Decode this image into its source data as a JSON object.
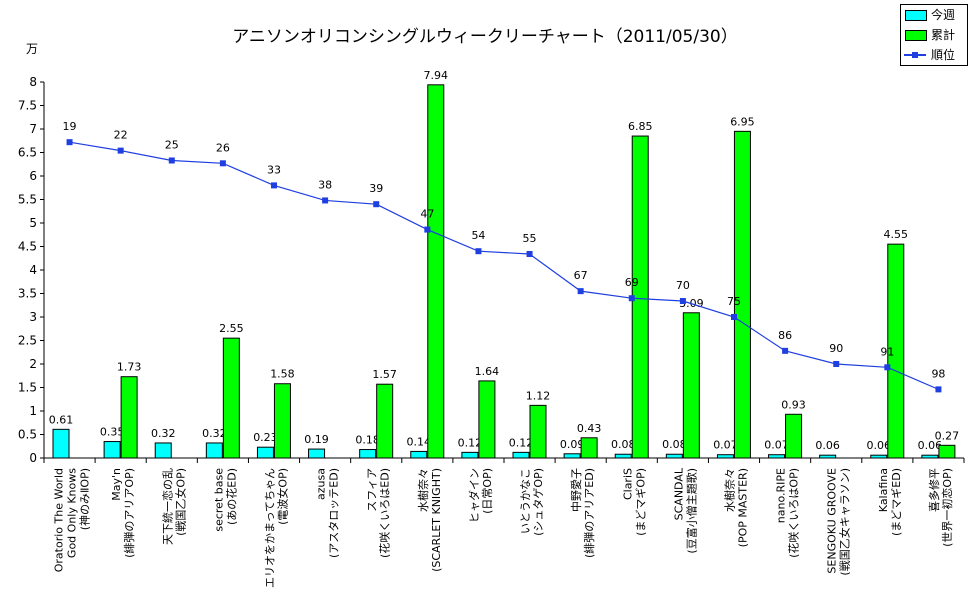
{
  "chart_data": {
    "type": "bar",
    "title": "アニソンオリコンシングルウィークリーチャート（2011/05/30）",
    "y_unit": "万",
    "ylim": [
      0,
      8
    ],
    "y_ticks": [
      "0",
      "0.5",
      "1",
      "1.5",
      "2",
      "2.5",
      "3",
      "3.5",
      "4",
      "4.5",
      "5",
      "5.5",
      "6",
      "6.5",
      "7",
      "7.5",
      "8"
    ],
    "legend_position": "top-right",
    "grid": false,
    "categories": [
      [
        "Oratorio The World",
        "God Only Knows",
        "(神のみⅡOP)"
      ],
      [
        "May'n",
        "(緋弾のアリアOP)"
      ],
      [
        "天下統一恋の乱",
        "(戦国乙女OP)"
      ],
      [
        "secret base",
        "(あの花ED)"
      ],
      [
        "エリオをかまってちゃん",
        "(電波女OP)"
      ],
      [
        "azusa",
        "(アスタロッテED)"
      ],
      [
        "スフィア",
        "(花咲くいろはED)"
      ],
      [
        "水樹奈々",
        "(SCARLET KNIGHT)"
      ],
      [
        "ヒャダイン",
        "(日常OP)"
      ],
      [
        "いとうかなこ",
        "(シュタゲOP)"
      ],
      [
        "中野愛子",
        "(緋弾のアリアED)"
      ],
      [
        "ClariS",
        "(まどマギOP)"
      ],
      [
        "SCANDAL",
        "(豆富小僧主題歌)"
      ],
      [
        "水樹奈々",
        "(POP MASTER)"
      ],
      [
        "nano.RIPE",
        "(花咲くいろはOP)"
      ],
      [
        "SENGOKU GROOVE",
        "(戦国乙女キャラソン)"
      ],
      [
        "Kalafina",
        "(まどマギED)"
      ],
      [
        "喜多修平",
        "(世界一初恋OP)"
      ]
    ],
    "series": [
      {
        "name": "今週",
        "color": "#00ffff",
        "values": [
          0.61,
          0.35,
          0.32,
          0.32,
          0.23,
          0.19,
          0.18,
          0.14,
          0.12,
          0.12,
          0.09,
          0.08,
          0.08,
          0.07,
          0.07,
          0.06,
          0.06,
          0.06
        ],
        "labels": [
          "0.61",
          "0.35",
          "0.32",
          "0.32",
          "0.23",
          "0.19",
          "0.18",
          "0.14",
          "0.12",
          "0.12",
          "0.09",
          "0.08",
          "0.08",
          "0.07",
          "0.07",
          "0.06",
          "0.06",
          "0.06"
        ]
      },
      {
        "name": "累計",
        "color": "#00ff00",
        "values": [
          null,
          1.73,
          null,
          2.55,
          1.58,
          null,
          1.57,
          7.94,
          1.64,
          1.12,
          0.43,
          6.85,
          3.09,
          6.95,
          0.93,
          null,
          4.55,
          0.27
        ],
        "labels": [
          "",
          "1.73",
          "",
          "2.55",
          "1.58",
          "",
          "1.57",
          "7.94",
          "1.64",
          "1.12",
          "0.43",
          "6.85",
          "3.09",
          "6.95",
          "0.93",
          "",
          "4.55",
          "0.27"
        ]
      },
      {
        "name": "順位",
        "type": "line",
        "color": "#1f3fe0",
        "values": [
          19,
          22,
          25,
          26,
          33,
          38,
          39,
          47,
          54,
          55,
          67,
          69,
          70,
          75,
          86,
          90,
          91,
          98
        ],
        "labels": [
          "19",
          "22",
          "25",
          "26",
          "33",
          "38",
          "39",
          "47",
          "54",
          "55",
          "67",
          "69",
          "70",
          "75",
          "86",
          "90",
          "91",
          "98"
        ],
        "plotted_on_left_axis_as": [
          6.72,
          6.54,
          6.33,
          6.27,
          5.8,
          5.48,
          5.4,
          4.86,
          4.4,
          4.34,
          3.55,
          3.4,
          3.34,
          3.0,
          2.28,
          2.0,
          1.93,
          1.46
        ]
      }
    ]
  }
}
